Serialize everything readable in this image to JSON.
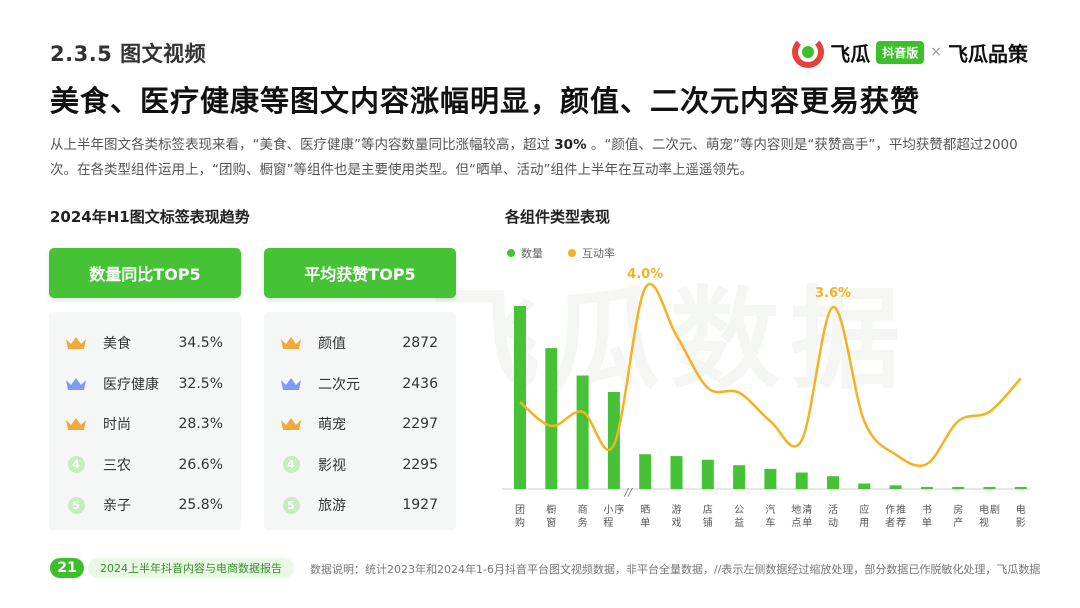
{
  "header": {
    "section": "2.3.5 图文视频",
    "headline": "美食、医疗健康等图文内容涨幅明显，颜值、二次元内容更易获赞",
    "brand_name_1": "飞瓜",
    "brand_tag": "抖音版",
    "brand_sep": "×",
    "brand_name_2": "飞瓜品策"
  },
  "description": {
    "part1": "从上半年图文各类标签表现来看，“美食、医疗健康”等内容数量同比涨幅较高，超过 ",
    "highlight": "30%",
    "part2": " 。“颜值、二次元、萌宠”等内容则是“获赞高手”，平均获赞都超过2000次。在各类型组件运用上，“团购、橱窗”等组件也是主要使用类型。但“晒单、活动”组件上半年在互动率上遥遥领先。"
  },
  "left": {
    "title": "2024年H1图文标签表现趋势",
    "card1": {
      "header": "数量同比TOP5",
      "rows": [
        {
          "rank": "1",
          "label": "美食",
          "value": "34.5%"
        },
        {
          "rank": "2",
          "label": "医疗健康",
          "value": "32.5%"
        },
        {
          "rank": "3",
          "label": "时尚",
          "value": "28.3%"
        },
        {
          "rank": "4",
          "label": "三农",
          "value": "26.6%"
        },
        {
          "rank": "5",
          "label": "亲子",
          "value": "25.8%"
        }
      ]
    },
    "card2": {
      "header": "平均获赞TOP5",
      "rows": [
        {
          "rank": "1",
          "label": "颜值",
          "value": "2872"
        },
        {
          "rank": "2",
          "label": "二次元",
          "value": "2436"
        },
        {
          "rank": "3",
          "label": "萌宠",
          "value": "2297"
        },
        {
          "rank": "4",
          "label": "影视",
          "value": "2295"
        },
        {
          "rank": "5",
          "label": "旅游",
          "value": "1927"
        }
      ]
    }
  },
  "chart_data": {
    "type": "bar",
    "title": "各组件类型表现",
    "categories": [
      "团购",
      "橱窗",
      "商务",
      "小程序",
      "晒单",
      "游戏",
      "店铺",
      "公益",
      "汽车",
      "地点清单",
      "活动",
      "应用",
      "作者推荐",
      "书单",
      "房产",
      "电视剧",
      "电影"
    ],
    "series": [
      {
        "name": "数量",
        "type": "bar",
        "color": "#46c236",
        "values": [
          100,
          77,
          62,
          53,
          19,
          18,
          16,
          13,
          11,
          9,
          7,
          3,
          2,
          1,
          1,
          1,
          1
        ]
      },
      {
        "name": "互动率",
        "type": "line",
        "color": "#f4b223",
        "unit": "%",
        "values": [
          1.6,
          1.1,
          1.4,
          0.7,
          4.0,
          3.0,
          1.9,
          1.8,
          1.2,
          0.8,
          3.6,
          1.2,
          0.5,
          0.3,
          1.2,
          1.4,
          2.1
        ]
      }
    ],
    "annotations": [
      {
        "category": "晒单",
        "label": "4.0%"
      },
      {
        "category": "活动",
        "label": "3.6%"
      }
    ],
    "axis_break_after": "小程序",
    "axis_break_symbol": "//",
    "legend": "top-left",
    "bars_scaled_note": "relative scale"
  },
  "footer": {
    "page": "21",
    "report": "2024上半年抖音内容与电商数据报告",
    "note": "数据说明：统计2023年和2024年1-6月抖音平台图文视频数据，非平台全量数据，//表示左侧数据经过缩放处理，部分数据已作脱敏化处理，飞瓜数据"
  },
  "watermark": "飞瓜数据",
  "colors": {
    "green": "#46c236",
    "orange": "#f4b223",
    "gold": "#f2a93b",
    "blue": "#7f9cf5",
    "ghost": "#c6ecc0"
  }
}
